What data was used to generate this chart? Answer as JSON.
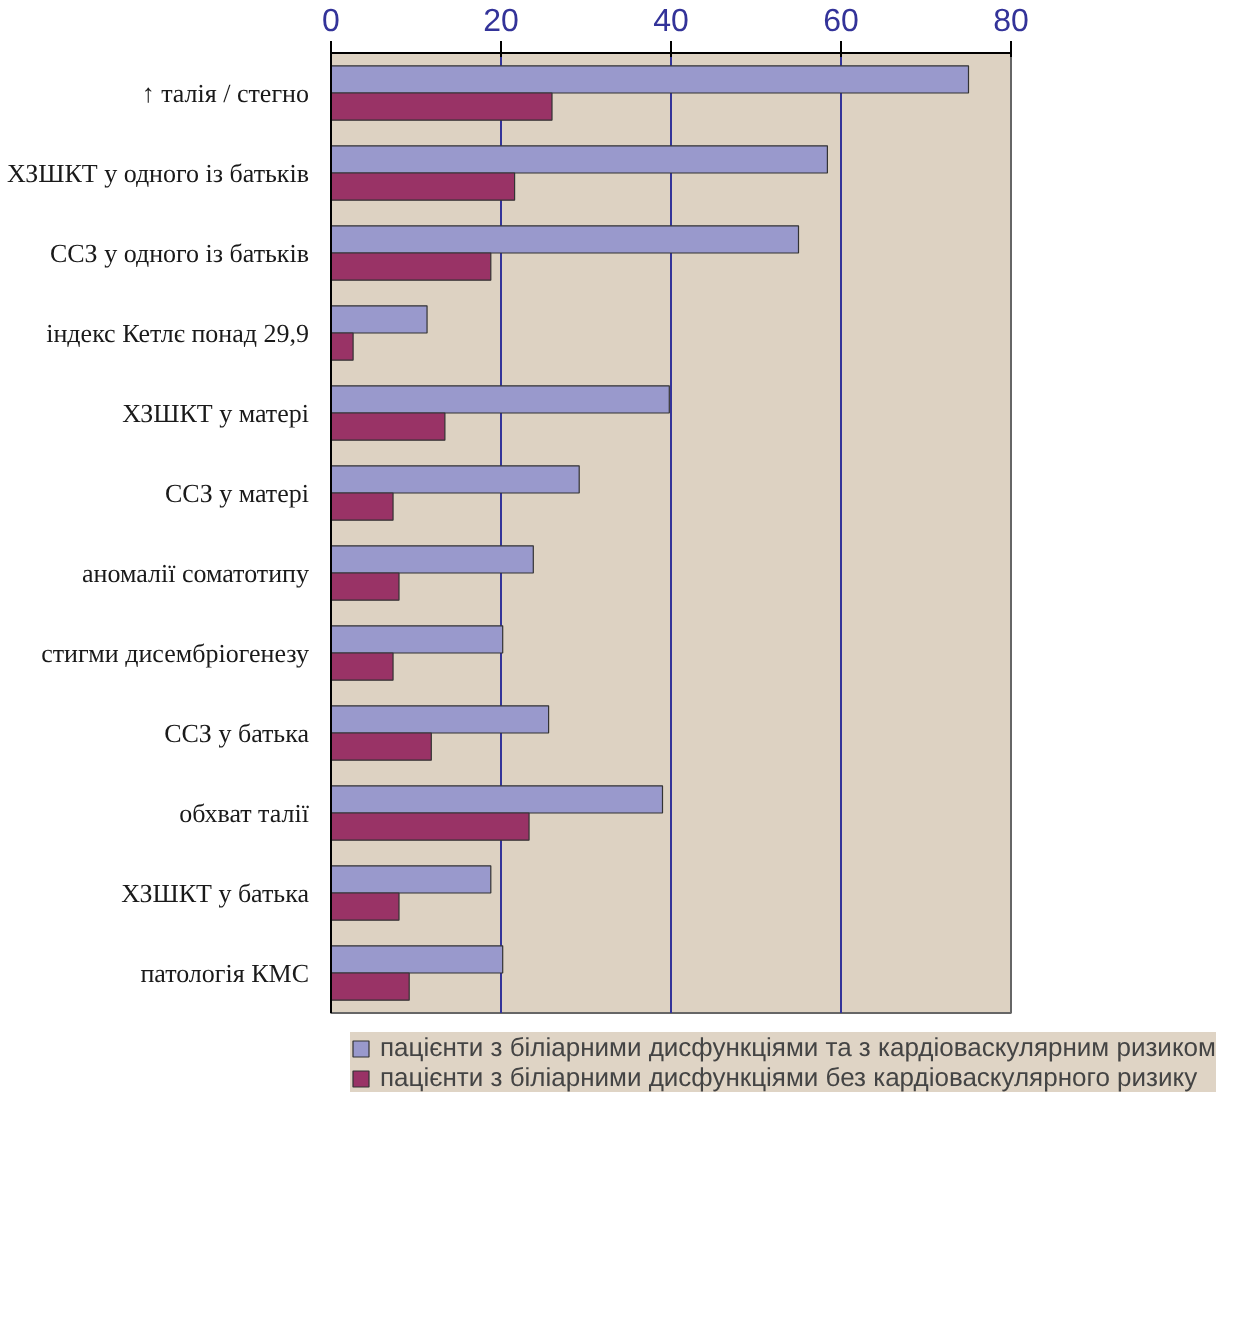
{
  "chart_data": {
    "type": "bar",
    "orientation": "horizontal",
    "categories": [
      "↑ талія / стегно",
      "ХЗШКТ у одного із батьків",
      "ССЗ у одного із батьків",
      "індекс Кетлє понад 29,9",
      "ХЗШКТ у матері",
      "ССЗ у матері",
      "аномалії соматотипу",
      "стигми дисембріогенезу",
      "ССЗ у батька",
      "обхват талії",
      "ХЗШКТ у батька",
      "патологія КМС"
    ],
    "series": [
      {
        "name": "пацієнти з біліарними дисфункціями та з кардіоваскулярним ризиком",
        "color": "#9999cc",
        "values": [
          75,
          58.4,
          55,
          11.3,
          39.8,
          29.2,
          23.8,
          20.2,
          25.6,
          39,
          18.8,
          20.2
        ]
      },
      {
        "name": "пацієнти з біліарними дисфункціями без кардіоваскулярного ризику",
        "color": "#993366",
        "values": [
          26,
          21.6,
          18.8,
          2.6,
          13.4,
          7.3,
          8,
          7.3,
          11.8,
          23.3,
          8,
          9.2
        ]
      }
    ],
    "xlim": [
      0,
      80
    ],
    "xticks": [
      0,
      20,
      40,
      60,
      80
    ],
    "grid": "x",
    "legend": "bottom"
  }
}
